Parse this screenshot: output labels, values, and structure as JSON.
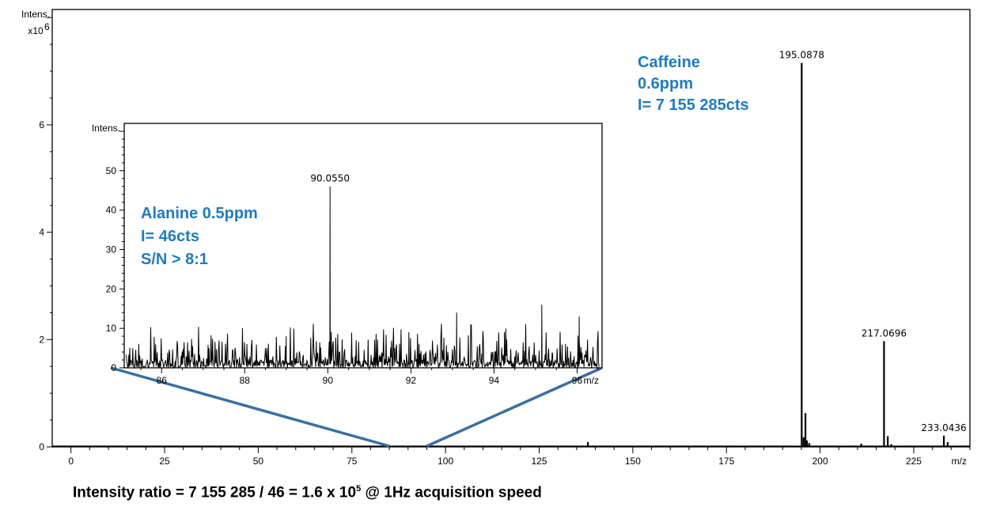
{
  "accent_color": "#1f7bbf",
  "zoom_connector_color": "#3a6fa0",
  "chart_data": [
    {
      "type": "line",
      "subtype": "mass-spectrum",
      "title": "",
      "xlabel": "m/z",
      "ylabel": "Intens.",
      "yscale_label": "x10",
      "yscale_exp": "6",
      "xlim": [
        -5,
        240
      ],
      "ylim": [
        0,
        8.15
      ],
      "xticks": [
        0,
        25,
        50,
        75,
        100,
        125,
        150,
        175,
        200,
        225
      ],
      "yticks": [
        0,
        2,
        4,
        6
      ],
      "peaks": [
        {
          "x": 138.0,
          "y": 0.09
        },
        {
          "x": 195.0878,
          "y": 7.155285,
          "label": "195.0878"
        },
        {
          "x": 195.6,
          "y": 0.18
        },
        {
          "x": 196.09,
          "y": 0.63
        },
        {
          "x": 196.5,
          "y": 0.12
        },
        {
          "x": 197.09,
          "y": 0.07
        },
        {
          "x": 211.0,
          "y": 0.06
        },
        {
          "x": 217.0696,
          "y": 1.97,
          "label": "217.0696"
        },
        {
          "x": 218.07,
          "y": 0.2
        },
        {
          "x": 219.0,
          "y": 0.05
        },
        {
          "x": 233.0436,
          "y": 0.21,
          "label": "233.0436"
        },
        {
          "x": 234.05,
          "y": 0.09
        }
      ],
      "annotations": [
        {
          "lines": [
            "Caffeine",
            "0.6ppm",
            "I= 7 155  285cts"
          ]
        }
      ],
      "zoom_range": [
        85,
        95
      ]
    },
    {
      "type": "line",
      "subtype": "mass-spectrum-inset",
      "title": "",
      "xlabel": "m/z",
      "ylabel": "Intens.",
      "xlim": [
        85.1,
        96.6
      ],
      "ylim": [
        0,
        62
      ],
      "xticks": [
        86,
        88,
        90,
        92,
        94,
        96
      ],
      "xtick_labels": [
        "86",
        "88",
        "90",
        "92",
        "94",
        "96"
      ],
      "yticks": [
        0,
        10,
        20,
        30,
        40,
        50
      ],
      "noise_level": 4,
      "peaks": [
        {
          "x": 90.055,
          "y": 46,
          "label": "90.0550"
        },
        {
          "x": 93.1,
          "y": 14
        },
        {
          "x": 95.15,
          "y": 16
        },
        {
          "x": 96.05,
          "y": 13
        },
        {
          "x": 91.95,
          "y": 9
        },
        {
          "x": 94.25,
          "y": 9
        },
        {
          "x": 89.0,
          "y": 8
        }
      ],
      "annotations": [
        {
          "lines": [
            "Alanine 0.5ppm",
            "I= 46cts",
            "S/N > 8:1"
          ]
        }
      ]
    }
  ],
  "footer": {
    "prefix": "Intensity ratio = 7 155 285 / 46 = 1.6 x 10",
    "exponent": "5",
    "suffix": " @ 1Hz acquisition speed"
  }
}
